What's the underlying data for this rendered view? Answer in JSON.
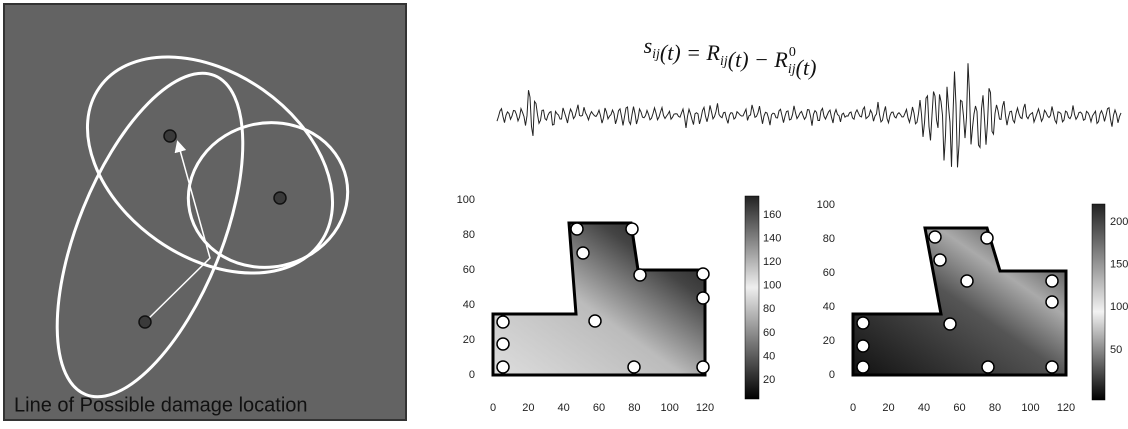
{
  "left_panel": {
    "caption": "Line of Possible damage location"
  },
  "equation": [
    {
      "text": "s",
      "sub": "ij"
    },
    {
      "text": "(t) = "
    },
    {
      "text": "R",
      "sub": "ij"
    },
    {
      "text": "(t) − "
    },
    {
      "text": "R",
      "sub": "ij",
      "sup": "0"
    },
    {
      "text": "(t)"
    }
  ],
  "maps": [
    {
      "xticks": [
        0,
        20,
        40,
        60,
        80,
        100,
        120
      ],
      "yticks": [
        0,
        20,
        40,
        60,
        80,
        100
      ],
      "colorbar_ticks": [
        20,
        40,
        60,
        80,
        100,
        120,
        140,
        160
      ]
    },
    {
      "xticks": [
        0,
        20,
        40,
        60,
        80,
        100,
        120
      ],
      "yticks": [
        0,
        20,
        40,
        60,
        80,
        100
      ],
      "colorbar_ticks": [
        50,
        100,
        150,
        200
      ]
    }
  ]
}
